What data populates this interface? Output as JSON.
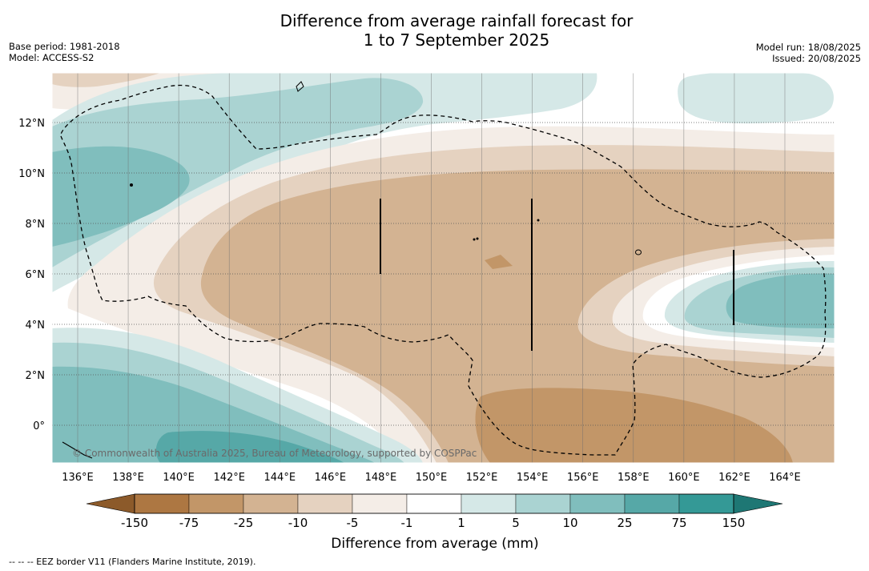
{
  "title": {
    "line1": "Difference from average rainfall forecast for",
    "line2": "1 to 7 September 2025"
  },
  "meta_left": {
    "base_period": "Base period: 1981-2018",
    "model": "Model: ACCESS-S2"
  },
  "meta_right": {
    "model_run": "Model run: 18/08/2025",
    "issued": "Issued: 20/08/2025"
  },
  "map": {
    "lat_labels": [
      "12°N",
      "10°N",
      "8°N",
      "6°N",
      "4°N",
      "2°N",
      "0°"
    ],
    "lon_labels": [
      "136°E",
      "138°E",
      "140°E",
      "142°E",
      "144°E",
      "146°E",
      "148°E",
      "150°E",
      "152°E",
      "154°E",
      "156°E",
      "158°E",
      "160°E",
      "162°E",
      "164°E"
    ],
    "copyright": "© Commonwealth of Australia 2025, Bureau of Meteorology, supported by COSPPac"
  },
  "legend": {
    "title": "Difference from average (mm)",
    "tick_labels": [
      "-150",
      "-75",
      "-25",
      "-10",
      "-5",
      "-1",
      "1",
      "5",
      "10",
      "25",
      "75",
      "150"
    ],
    "colors": [
      "#8c5a2a",
      "#ad7742",
      "#c29668",
      "#d3b392",
      "#e5d2c0",
      "#f4ede7",
      "#ffffff",
      "#d5e8e7",
      "#aad3d2",
      "#80bebd",
      "#56a8a7",
      "#349996",
      "#1e7774"
    ]
  },
  "footnote": "--  --  -- EEZ border V11 (Flanders Marine Institute, 2019)."
}
